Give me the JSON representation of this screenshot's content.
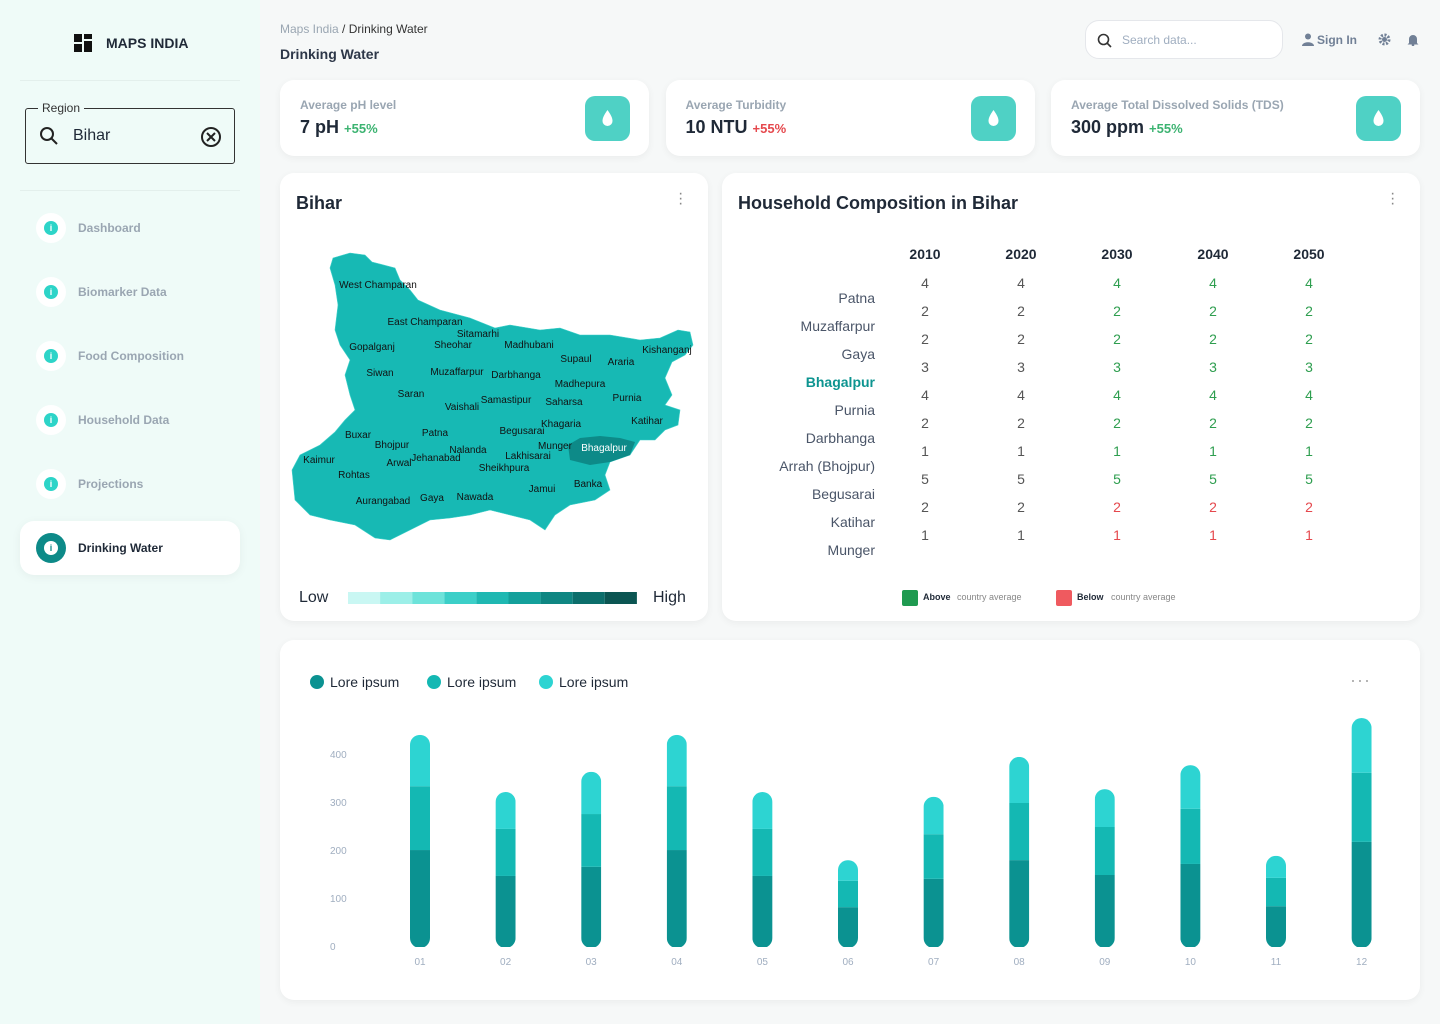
{
  "sidebar": {
    "brand": "MAPS INDIA",
    "region_label": "Region",
    "region_value": "Bihar",
    "nav": [
      "Dashboard",
      "Biomarker Data",
      "Food Composition",
      "Household Data",
      "Projections",
      "Drinking Water"
    ],
    "active": 5
  },
  "header": {
    "crumb_root": "Maps India",
    "crumb_sep": "/",
    "crumb_current": "Drinking Water",
    "title": "Drinking Water",
    "search_placeholder": "Search data...",
    "sign_in": "Sign In"
  },
  "kpis": [
    {
      "label": "Average pH level",
      "value": "7 pH",
      "change": "+55%",
      "change_color": "#3cb371"
    },
    {
      "label": "Average Turbidity",
      "value": "10 NTU",
      "change": "+55%",
      "change_color": "#e5484d"
    },
    {
      "label": "Average Total Dissolved Solids (TDS)",
      "value": "300 ppm",
      "change": "+55%",
      "change_color": "#3cb371"
    }
  ],
  "map": {
    "title": "Bihar",
    "districts": [
      "West Champaran",
      "East Champaran",
      "Sitamarhi",
      "Sheohar",
      "Madhubani",
      "Gopalganj",
      "Kishanganj",
      "Supaul",
      "Araria",
      "Siwan",
      "Muzaffarpur",
      "Darbhanga",
      "Madhepura",
      "Saran",
      "Purnia",
      "Vaishali",
      "Samastipur",
      "Saharsa",
      "Khagaria",
      "Katihar",
      "Begusarai",
      "Buxar",
      "Patna",
      "Bhojpur",
      "Munger",
      "Bhagalpur",
      "Nalanda",
      "Lakhisarai",
      "Kaimur",
      "Arwal",
      "Jehanabad",
      "Sheikhpura",
      "Rohtas",
      "Banka",
      "Jamui",
      "Nawada",
      "Aurangabad",
      "Gaya"
    ],
    "highlight": 25,
    "fill": "#17b9b4",
    "highlight_fill": "#0d8a88",
    "legend_low": "Low",
    "legend_high": "High",
    "legend_colors": [
      "#c9f7f3",
      "#9cefe8",
      "#6de3da",
      "#3ccfc8",
      "#1fb8b2",
      "#14a09b",
      "#0f8682",
      "#0c6e6b",
      "#0b5552"
    ]
  },
  "table": {
    "title": "Household Composition in Bihar",
    "columns": [
      "2010",
      "2020",
      "2030",
      "2040",
      "2050"
    ],
    "highlight_row": 3,
    "rows": [
      {
        "name": "Patna",
        "values": [
          4,
          4,
          4,
          4,
          4
        ],
        "color": "#2e9e4f"
      },
      {
        "name": "Muzaffarpur",
        "values": [
          2,
          2,
          2,
          2,
          2
        ],
        "color": "#2e9e4f"
      },
      {
        "name": "Gaya",
        "values": [
          2,
          2,
          2,
          2,
          2
        ],
        "color": "#2e9e4f"
      },
      {
        "name": "Bhagalpur",
        "values": [
          3,
          3,
          3,
          3,
          3
        ],
        "color": "#2e9e4f"
      },
      {
        "name": "Purnia",
        "values": [
          4,
          4,
          4,
          4,
          4
        ],
        "color": "#2e9e4f"
      },
      {
        "name": "Darbhanga",
        "values": [
          2,
          2,
          2,
          2,
          2
        ],
        "color": "#2e9e4f"
      },
      {
        "name": "Arrah (Bhojpur)",
        "values": [
          1,
          1,
          1,
          1,
          1
        ],
        "color": "#2e9e4f"
      },
      {
        "name": "Begusarai",
        "values": [
          5,
          5,
          5,
          5,
          5
        ],
        "color": "#2e9e4f"
      },
      {
        "name": "Katihar",
        "values": [
          2,
          2,
          2,
          2,
          2
        ],
        "color": "#e5484d"
      },
      {
        "name": "Munger",
        "values": [
          1,
          1,
          1,
          1,
          1
        ],
        "color": "#e5484d"
      }
    ],
    "legend": [
      {
        "bold": "Above",
        "text": "country average",
        "color": "#1f9a50"
      },
      {
        "bold": "Below",
        "text": "country average",
        "color": "#ef5a5f"
      }
    ]
  },
  "chart_data": {
    "type": "bar",
    "stacked": true,
    "categories": [
      "01",
      "02",
      "03",
      "04",
      "05",
      "06",
      "07",
      "08",
      "09",
      "10",
      "11",
      "12"
    ],
    "series": [
      {
        "name": "Lore ipsum",
        "color": "#0b9291",
        "values": [
          202,
          148,
          167,
          202,
          148,
          83,
          142,
          181,
          150,
          173,
          85,
          219
        ]
      },
      {
        "name": "Lore ipsum",
        "color": "#14b8b3",
        "values": [
          133,
          98,
          110,
          133,
          98,
          55,
          93,
          119,
          100,
          115,
          59,
          144
        ]
      },
      {
        "name": "Lore ipsum",
        "color": "#2dd4d2",
        "values": [
          107,
          77,
          88,
          107,
          77,
          43,
          78,
          96,
          79,
          91,
          46,
          114
        ]
      }
    ],
    "ylim": [
      0,
      480
    ],
    "yticks": [
      0,
      100,
      200,
      300,
      400
    ]
  }
}
